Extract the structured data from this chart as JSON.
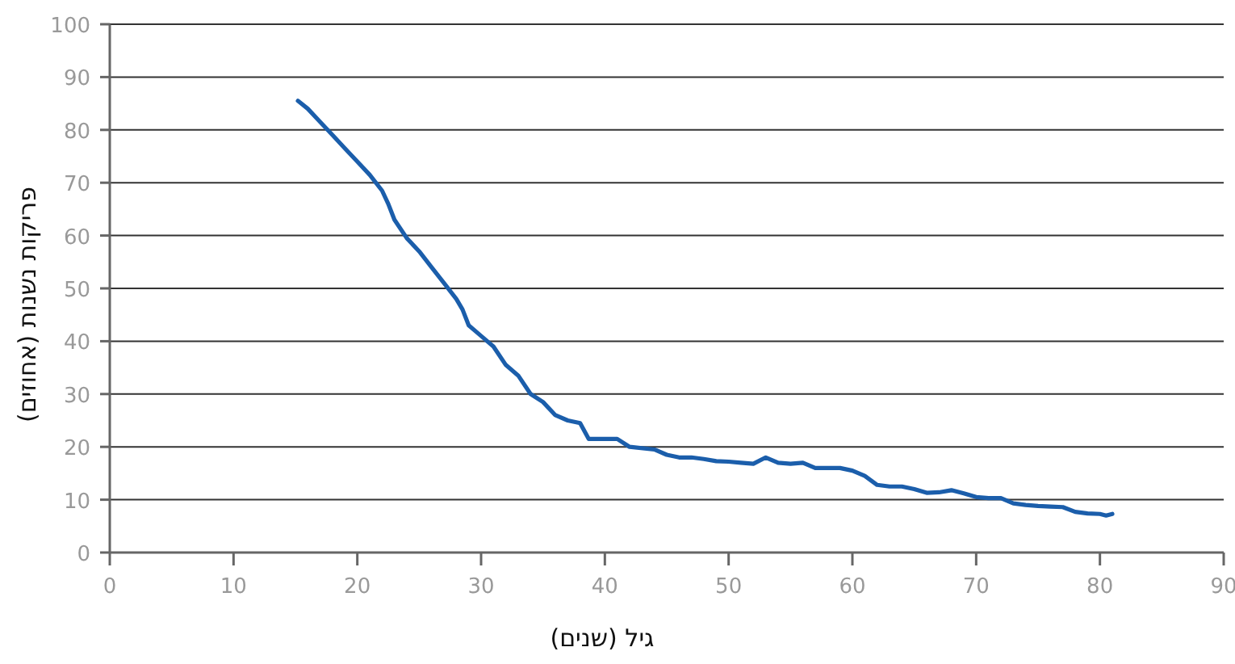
{
  "chart_data": {
    "type": "line",
    "xlabel": "גיל (שנים)",
    "ylabel": "פריקות נשנות (אחוזים)",
    "x": [
      15.2,
      16,
      17,
      18,
      19,
      20,
      21,
      22,
      22.5,
      23,
      24,
      25,
      26,
      27,
      28,
      28.5,
      29,
      30,
      31,
      32,
      33,
      34,
      35,
      36,
      37,
      38,
      38.7,
      40,
      41,
      42,
      44,
      45,
      46,
      47,
      48,
      49,
      50,
      51,
      52,
      53,
      54,
      55,
      56,
      57,
      58,
      59,
      60,
      61,
      62,
      63,
      64,
      65,
      66,
      67,
      68,
      69,
      70,
      71,
      72,
      73,
      74,
      75,
      76,
      77,
      78,
      79,
      80,
      80.5,
      81
    ],
    "values": [
      85.5,
      84,
      81.5,
      79,
      76.5,
      74,
      71.5,
      68.5,
      66,
      63,
      59.5,
      57,
      54,
      51,
      48,
      46,
      43,
      41,
      39,
      35.5,
      33.5,
      30,
      28.5,
      26,
      25,
      24.5,
      21.5,
      21.5,
      21.5,
      20,
      19.5,
      18.5,
      18,
      18,
      17.7,
      17.3,
      17.2,
      17,
      16.8,
      18,
      17,
      16.8,
      17,
      16,
      16,
      16,
      15.5,
      14.5,
      12.8,
      12.5,
      12.5,
      12,
      11.3,
      11.4,
      11.8,
      11.2,
      10.5,
      10.3,
      10.3,
      9.3,
      9,
      8.8,
      8.7,
      8.6,
      7.7,
      7.4,
      7.3,
      7,
      7.3
    ],
    "color": "#1b5eab",
    "xlim": [
      0,
      90
    ],
    "xticks": [
      0,
      10,
      20,
      30,
      40,
      50,
      60,
      70,
      80,
      90
    ],
    "ylim": [
      0,
      100
    ],
    "yticks": [
      0,
      10,
      20,
      30,
      40,
      50,
      60,
      70,
      80,
      90,
      100
    ],
    "grid": "y",
    "legend": false,
    "marker": "none",
    "line_style": "solid"
  }
}
